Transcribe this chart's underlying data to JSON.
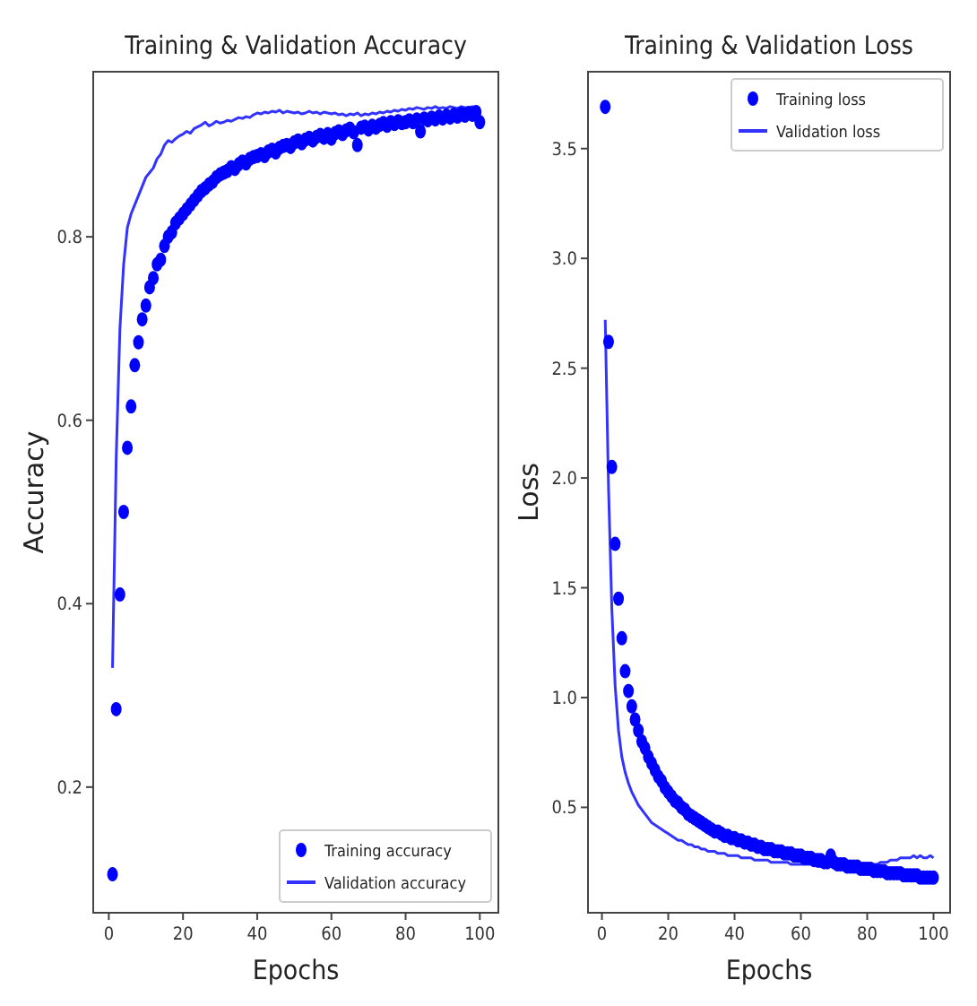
{
  "chart_data": [
    {
      "type": "line",
      "title": "Training & Validation Accuracy",
      "xlabel": "Epochs",
      "ylabel": "Accuracy",
      "xlim": [
        -4.2,
        105
      ],
      "ylim": [
        0.063,
        0.98
      ],
      "xticks": [
        0,
        20,
        40,
        60,
        80,
        100
      ],
      "yticks": [
        0.2,
        0.4,
        0.6,
        0.8
      ],
      "legend": "bottom right",
      "grid": false,
      "x": [
        1,
        2,
        3,
        4,
        5,
        6,
        7,
        8,
        9,
        10,
        11,
        12,
        13,
        14,
        15,
        16,
        17,
        18,
        19,
        20,
        21,
        22,
        23,
        24,
        25,
        26,
        27,
        28,
        29,
        30,
        31,
        32,
        33,
        34,
        35,
        36,
        37,
        38,
        39,
        40,
        41,
        42,
        43,
        44,
        45,
        46,
        47,
        48,
        49,
        50,
        51,
        52,
        53,
        54,
        55,
        56,
        57,
        58,
        59,
        60,
        61,
        62,
        63,
        64,
        65,
        66,
        67,
        68,
        69,
        70,
        71,
        72,
        73,
        74,
        75,
        76,
        77,
        78,
        79,
        80,
        81,
        82,
        83,
        84,
        85,
        86,
        87,
        88,
        89,
        90,
        91,
        92,
        93,
        94,
        95,
        96,
        97,
        98,
        99,
        100
      ],
      "series": [
        {
          "name": "Training accuracy",
          "type": "scatter",
          "marker": "circle",
          "color": "#0000ff",
          "values": [
            0.105,
            0.285,
            0.41,
            0.5,
            0.57,
            0.615,
            0.66,
            0.685,
            0.71,
            0.725,
            0.745,
            0.755,
            0.77,
            0.775,
            0.79,
            0.8,
            0.805,
            0.815,
            0.82,
            0.825,
            0.83,
            0.835,
            0.84,
            0.845,
            0.85,
            0.853,
            0.857,
            0.86,
            0.865,
            0.868,
            0.87,
            0.872,
            0.876,
            0.874,
            0.879,
            0.882,
            0.88,
            0.885,
            0.887,
            0.888,
            0.89,
            0.888,
            0.893,
            0.895,
            0.892,
            0.897,
            0.899,
            0.9,
            0.898,
            0.903,
            0.905,
            0.902,
            0.906,
            0.908,
            0.905,
            0.909,
            0.911,
            0.908,
            0.912,
            0.907,
            0.913,
            0.915,
            0.912,
            0.916,
            0.918,
            0.914,
            0.9,
            0.919,
            0.92,
            0.917,
            0.921,
            0.919,
            0.922,
            0.924,
            0.921,
            0.925,
            0.923,
            0.926,
            0.924,
            0.925,
            0.927,
            0.925,
            0.928,
            0.915,
            0.929,
            0.927,
            0.93,
            0.928,
            0.931,
            0.929,
            0.932,
            0.93,
            0.933,
            0.931,
            0.934,
            0.932,
            0.935,
            0.933,
            0.936,
            0.925
          ]
        },
        {
          "name": "Validation accuracy",
          "line_style": "solid",
          "color": "#3333ff",
          "values": [
            0.33,
            0.56,
            0.7,
            0.77,
            0.81,
            0.825,
            0.835,
            0.845,
            0.855,
            0.865,
            0.87,
            0.875,
            0.885,
            0.89,
            0.9,
            0.905,
            0.903,
            0.907,
            0.91,
            0.912,
            0.915,
            0.913,
            0.918,
            0.92,
            0.922,
            0.925,
            0.921,
            0.923,
            0.926,
            0.924,
            0.925,
            0.927,
            0.926,
            0.928,
            0.93,
            0.929,
            0.931,
            0.93,
            0.933,
            0.935,
            0.934,
            0.936,
            0.935,
            0.937,
            0.936,
            0.938,
            0.935,
            0.937,
            0.936,
            0.935,
            0.936,
            0.934,
            0.935,
            0.937,
            0.935,
            0.936,
            0.934,
            0.936,
            0.935,
            0.934,
            0.935,
            0.933,
            0.934,
            0.932,
            0.934,
            0.933,
            0.935,
            0.932,
            0.934,
            0.933,
            0.935,
            0.934,
            0.936,
            0.935,
            0.937,
            0.936,
            0.938,
            0.937,
            0.939,
            0.938,
            0.94,
            0.939,
            0.941,
            0.94,
            0.939,
            0.941,
            0.94,
            0.942,
            0.94,
            0.941,
            0.94,
            0.942,
            0.941,
            0.94,
            0.942,
            0.941,
            0.94,
            0.942,
            0.941,
            0.94
          ]
        }
      ]
    },
    {
      "type": "line",
      "title": "Training & Validation Loss",
      "xlabel": "Epochs",
      "ylabel": "Loss",
      "xlim": [
        -4.2,
        105
      ],
      "ylim": [
        0.02,
        3.85
      ],
      "xticks": [
        0,
        20,
        40,
        60,
        80,
        100
      ],
      "yticks": [
        0.5,
        {
          "value": 1,
          "label": "1.0"
        },
        1.5,
        {
          "value": 2,
          "label": "2.0"
        },
        2.5,
        {
          "value": 3,
          "label": "3.0"
        },
        3.5
      ],
      "legend": "top right",
      "grid": false,
      "x": [
        1,
        2,
        3,
        4,
        5,
        6,
        7,
        8,
        9,
        10,
        11,
        12,
        13,
        14,
        15,
        16,
        17,
        18,
        19,
        20,
        21,
        22,
        23,
        24,
        25,
        26,
        27,
        28,
        29,
        30,
        31,
        32,
        33,
        34,
        35,
        36,
        37,
        38,
        39,
        40,
        41,
        42,
        43,
        44,
        45,
        46,
        47,
        48,
        49,
        50,
        51,
        52,
        53,
        54,
        55,
        56,
        57,
        58,
        59,
        60,
        61,
        62,
        63,
        64,
        65,
        66,
        67,
        68,
        69,
        70,
        71,
        72,
        73,
        74,
        75,
        76,
        77,
        78,
        79,
        80,
        81,
        82,
        83,
        84,
        85,
        86,
        87,
        88,
        89,
        90,
        91,
        92,
        93,
        94,
        95,
        96,
        97,
        98,
        99,
        100
      ],
      "series": [
        {
          "name": "Training loss",
          "type": "scatter",
          "marker": "circle",
          "color": "#0000ff",
          "values": [
            3.69,
            2.62,
            2.05,
            1.7,
            1.45,
            1.27,
            1.12,
            1.03,
            0.96,
            0.9,
            0.85,
            0.8,
            0.77,
            0.73,
            0.7,
            0.67,
            0.64,
            0.62,
            0.59,
            0.57,
            0.55,
            0.53,
            0.52,
            0.5,
            0.49,
            0.47,
            0.46,
            0.45,
            0.44,
            0.43,
            0.42,
            0.41,
            0.4,
            0.39,
            0.39,
            0.38,
            0.37,
            0.37,
            0.36,
            0.36,
            0.35,
            0.35,
            0.34,
            0.34,
            0.33,
            0.33,
            0.32,
            0.32,
            0.31,
            0.31,
            0.31,
            0.3,
            0.3,
            0.3,
            0.29,
            0.29,
            0.29,
            0.28,
            0.28,
            0.28,
            0.27,
            0.27,
            0.27,
            0.26,
            0.26,
            0.26,
            0.25,
            0.25,
            0.28,
            0.25,
            0.24,
            0.24,
            0.24,
            0.23,
            0.23,
            0.23,
            0.23,
            0.22,
            0.22,
            0.22,
            0.22,
            0.21,
            0.21,
            0.21,
            0.21,
            0.2,
            0.2,
            0.2,
            0.2,
            0.2,
            0.19,
            0.19,
            0.19,
            0.19,
            0.19,
            0.18,
            0.18,
            0.18,
            0.18,
            0.18
          ]
        },
        {
          "name": "Validation loss",
          "line_style": "solid",
          "color": "#3333ff",
          "values": [
            2.72,
            1.95,
            1.4,
            1.05,
            0.85,
            0.73,
            0.66,
            0.61,
            0.57,
            0.54,
            0.51,
            0.49,
            0.47,
            0.45,
            0.43,
            0.42,
            0.41,
            0.4,
            0.39,
            0.38,
            0.37,
            0.36,
            0.35,
            0.35,
            0.34,
            0.33,
            0.33,
            0.32,
            0.32,
            0.31,
            0.31,
            0.3,
            0.3,
            0.3,
            0.29,
            0.29,
            0.29,
            0.28,
            0.28,
            0.28,
            0.28,
            0.27,
            0.27,
            0.27,
            0.27,
            0.26,
            0.26,
            0.26,
            0.26,
            0.26,
            0.25,
            0.25,
            0.25,
            0.25,
            0.25,
            0.25,
            0.24,
            0.24,
            0.24,
            0.24,
            0.24,
            0.24,
            0.24,
            0.24,
            0.23,
            0.23,
            0.23,
            0.23,
            0.23,
            0.23,
            0.23,
            0.23,
            0.23,
            0.23,
            0.23,
            0.23,
            0.23,
            0.23,
            0.23,
            0.23,
            0.24,
            0.24,
            0.24,
            0.25,
            0.25,
            0.25,
            0.26,
            0.26,
            0.26,
            0.27,
            0.27,
            0.27,
            0.27,
            0.28,
            0.27,
            0.28,
            0.27,
            0.27,
            0.28,
            0.27
          ]
        }
      ]
    }
  ]
}
